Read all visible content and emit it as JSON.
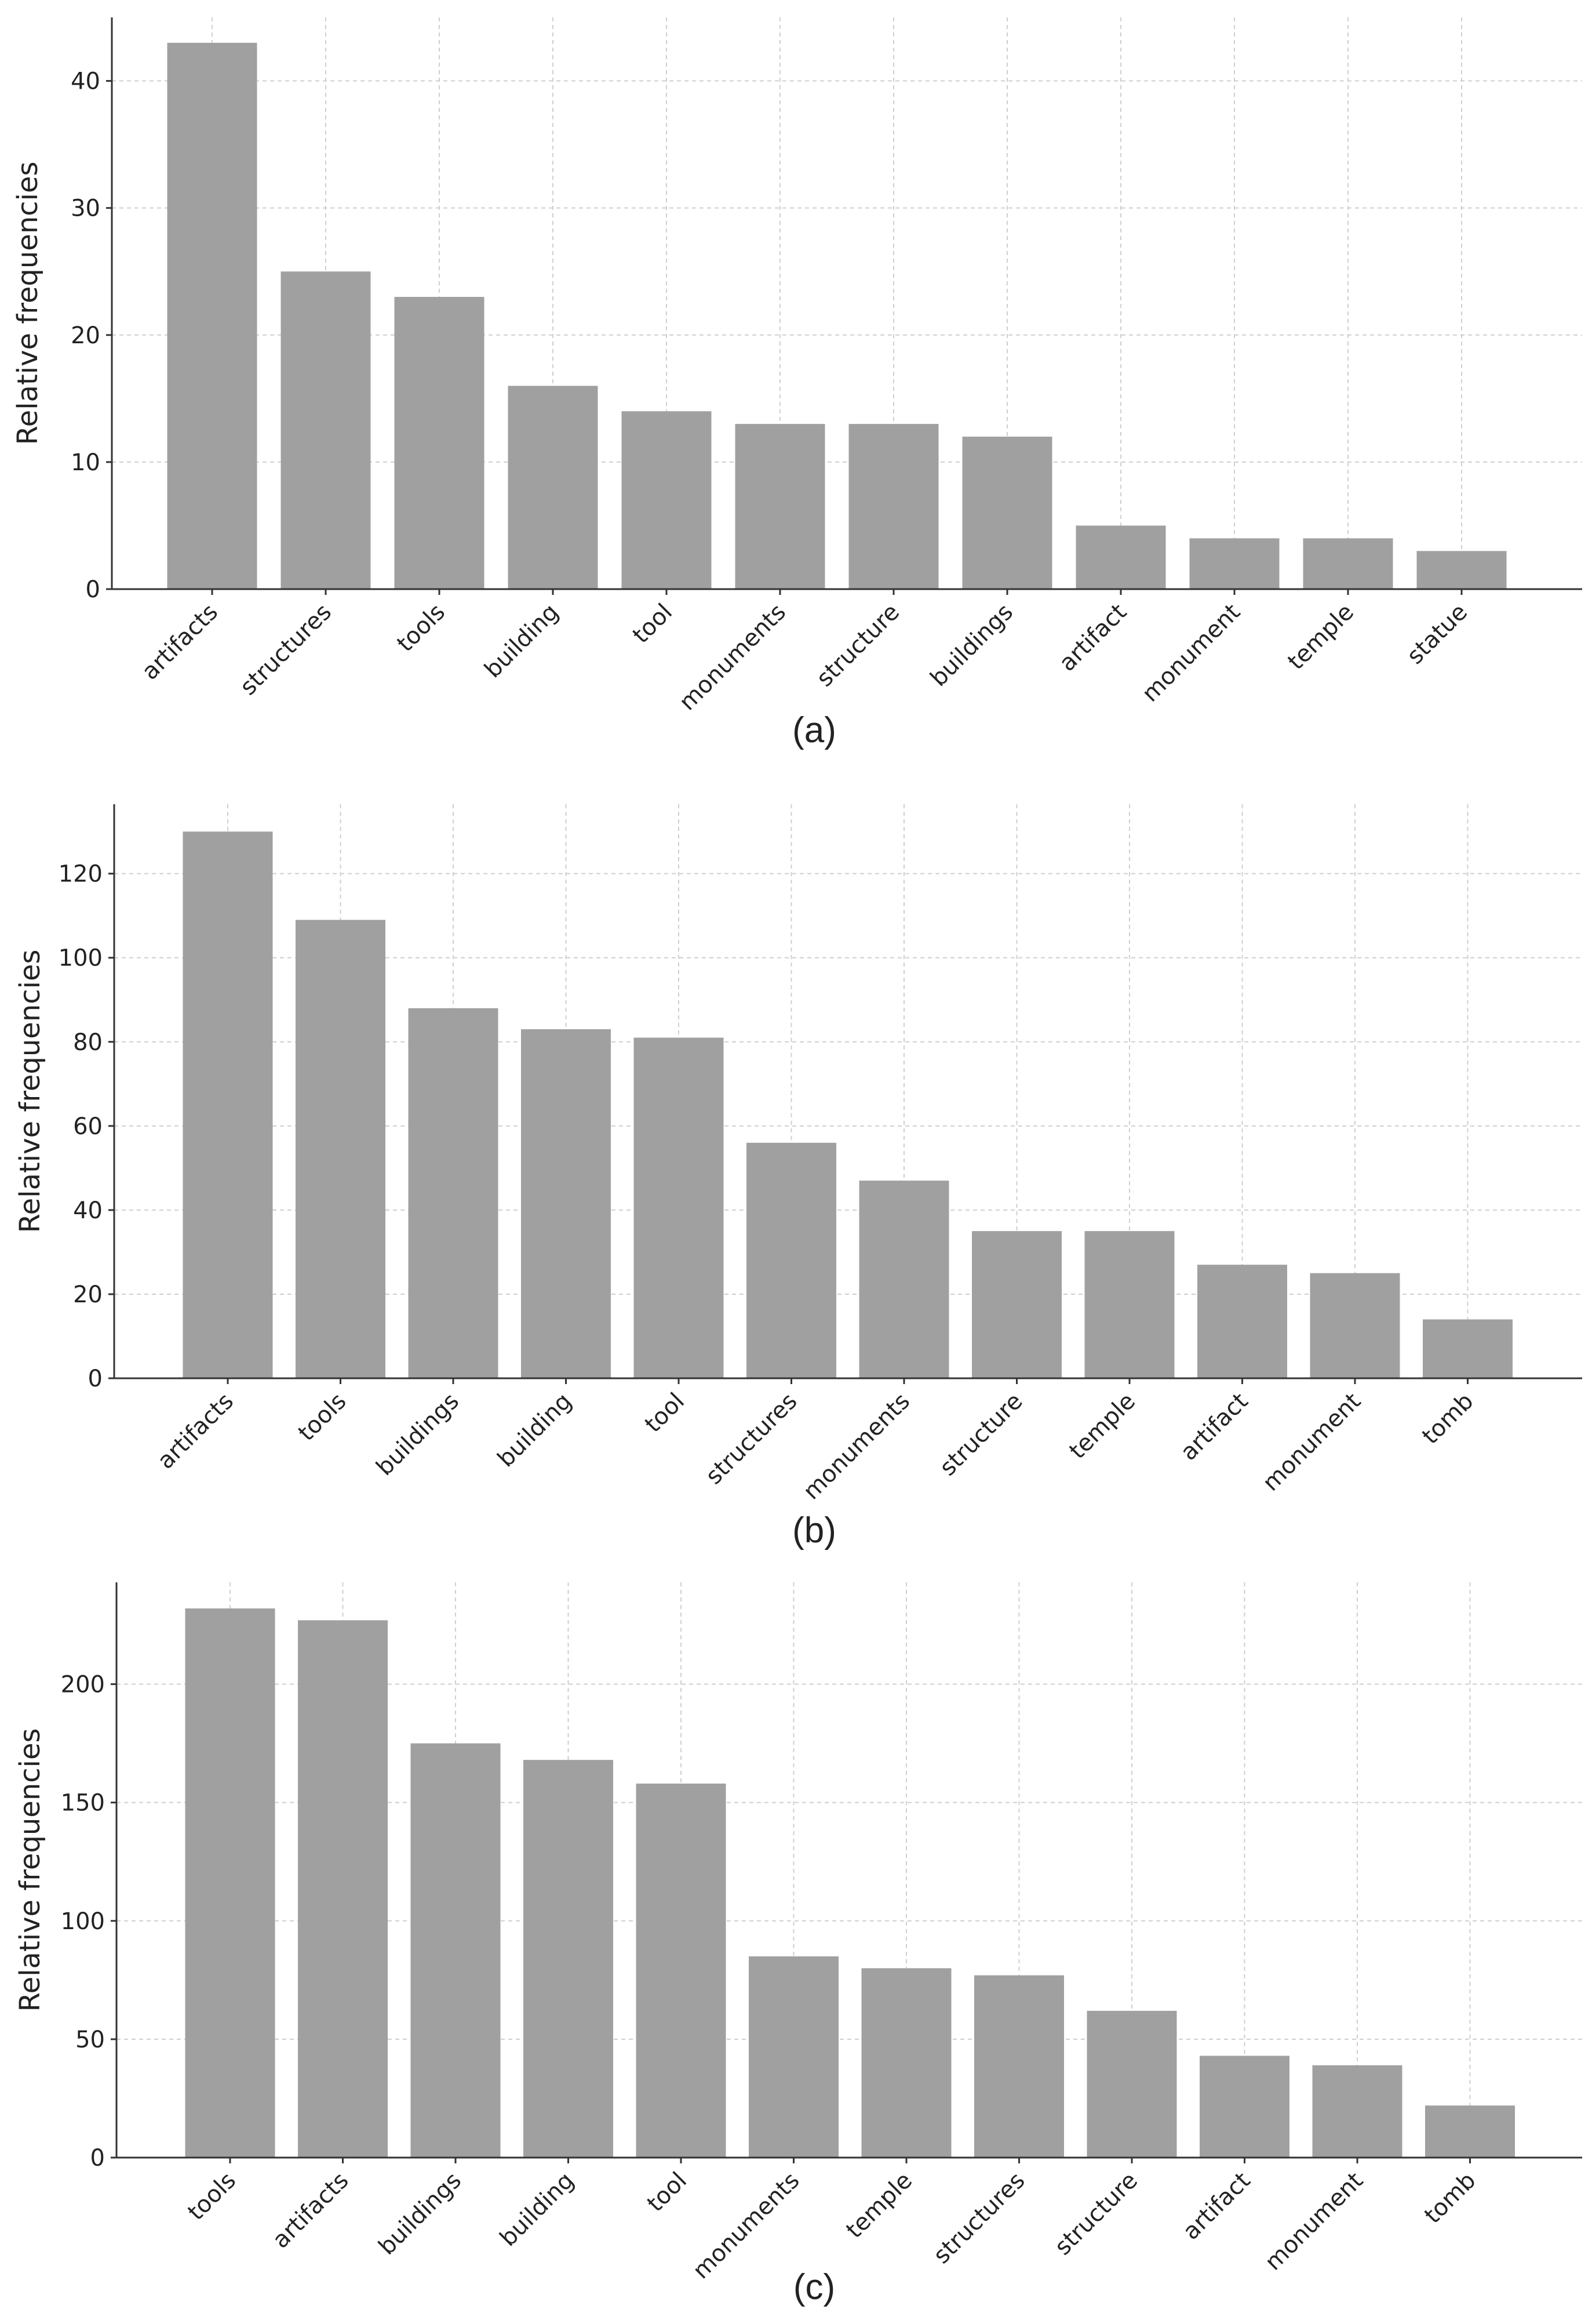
{
  "colors": {
    "bar": "#a0a0a0",
    "grid": "#cfcfcf",
    "axis": "#333333",
    "text": "#222222"
  },
  "chart_data": [
    {
      "type": "bar",
      "caption": "(a)",
      "ylabel": "Relative frequencies",
      "xlabel": "",
      "ylim": [
        0,
        45
      ],
      "yticks": [
        0,
        10,
        20,
        30,
        40
      ],
      "grid": true,
      "categories": [
        "artifacts",
        "structures",
        "tools",
        "building",
        "tool",
        "monuments",
        "structure",
        "buildings",
        "artifact",
        "monument",
        "temple",
        "statue"
      ],
      "values": [
        43,
        25,
        23,
        16,
        14,
        13,
        13,
        12,
        5,
        4,
        4,
        3
      ]
    },
    {
      "type": "bar",
      "caption": "(b)",
      "ylabel": "Relative frequencies",
      "xlabel": "",
      "ylim": [
        0,
        136.5
      ],
      "yticks": [
        0,
        20,
        40,
        60,
        80,
        100,
        120
      ],
      "grid": true,
      "categories": [
        "artifacts",
        "tools",
        "buildings",
        "building",
        "tool",
        "structures",
        "monuments",
        "structure",
        "temple",
        "artifact",
        "monument",
        "tomb"
      ],
      "values": [
        130,
        109,
        88,
        83,
        81,
        56,
        47,
        35,
        35,
        27,
        25,
        14
      ]
    },
    {
      "type": "bar",
      "caption": "(c)",
      "ylabel": "Relative frequencies",
      "xlabel": "",
      "ylim": [
        0,
        243
      ],
      "yticks": [
        0,
        50,
        100,
        150,
        200
      ],
      "grid": true,
      "categories": [
        "tools",
        "artifacts",
        "buildings",
        "building",
        "tool",
        "monuments",
        "temple",
        "structures",
        "structure",
        "artifact",
        "monument",
        "tomb"
      ],
      "values": [
        232,
        227,
        175,
        168,
        158,
        85,
        80,
        77,
        62,
        43,
        39,
        22
      ]
    }
  ]
}
